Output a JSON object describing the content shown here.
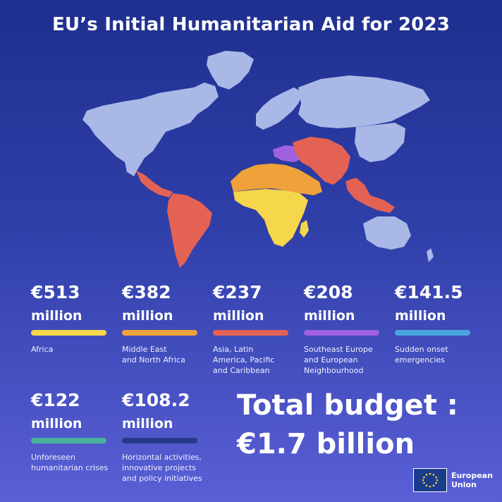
{
  "title": "EU’s Initial Humanitarian Aid for 2023",
  "colors": {
    "land": "#a9b8e6",
    "africa": "#f6d64a",
    "mena": "#f0a23a",
    "asia_latam": "#e46254",
    "se_europe": "#a061e0",
    "sudden": "#4aa5dd",
    "unforeseen": "#49b19a",
    "horizontal": "#273a8c"
  },
  "stats": [
    {
      "amount": "€513",
      "unit": "million",
      "label": "Africa",
      "color": "#f6d64a"
    },
    {
      "amount": "€382",
      "unit": "million",
      "label": "Middle East\nand North Africa",
      "color": "#f0a23a"
    },
    {
      "amount": "€237",
      "unit": "million",
      "label": "Asia, Latin\nAmerica, Pacific\nand Caribbean",
      "color": "#e46254"
    },
    {
      "amount": "€208",
      "unit": "million",
      "label": "Southeast Europe\nand European\nNeighbourhood",
      "color": "#a061e0"
    },
    {
      "amount": "€141.5",
      "unit": "million",
      "label": "Sudden onset\nemergencies",
      "color": "#4aa5dd"
    },
    {
      "amount": "€122",
      "unit": "million",
      "label": "Unforeseen\nhumanitarian crises",
      "color": "#49b19a"
    },
    {
      "amount": "€108.2",
      "unit": "million",
      "label": "Horizontal activities,\ninnovative projects\nand policy initiatives",
      "color": "#273a8c"
    }
  ],
  "total": {
    "line1": "Total budget :",
    "line2": "€1.7 billion"
  },
  "logo": {
    "line1": "European",
    "line2": "Union"
  }
}
